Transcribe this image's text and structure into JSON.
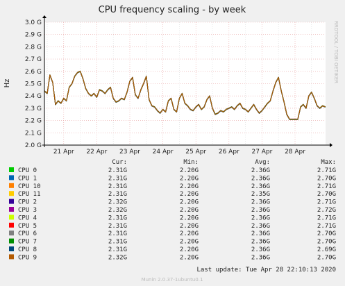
{
  "chart_data": {
    "type": "line",
    "title": "CPU frequency scaling - by week",
    "ylabel": "Hz",
    "side_label": "RRDTOOL / TOBI OETIKER",
    "ylim": [
      2000000000,
      3000000000
    ],
    "y_ticks": [
      {
        "value": 2000000000,
        "label": "2.0 G"
      },
      {
        "value": 2100000000,
        "label": "2.1 G"
      },
      {
        "value": 2200000000,
        "label": "2.2 G"
      },
      {
        "value": 2300000000,
        "label": "2.3 G"
      },
      {
        "value": 2400000000,
        "label": "2.4 G"
      },
      {
        "value": 2500000000,
        "label": "2.5 G"
      },
      {
        "value": 2600000000,
        "label": "2.6 G"
      },
      {
        "value": 2700000000,
        "label": "2.7 G"
      },
      {
        "value": 2800000000,
        "label": "2.8 G"
      },
      {
        "value": 2900000000,
        "label": "2.9 G"
      },
      {
        "value": 3000000000,
        "label": "3.0 G"
      }
    ],
    "x_range": [
      "2020-04-20 10:00",
      "2020-04-28 22:10"
    ],
    "x_ticks": [
      {
        "date": "2020-04-21",
        "label": "21 Apr"
      },
      {
        "date": "2020-04-22",
        "label": "22 Apr"
      },
      {
        "date": "2020-04-23",
        "label": "23 Apr"
      },
      {
        "date": "2020-04-24",
        "label": "24 Apr"
      },
      {
        "date": "2020-04-25",
        "label": "25 Apr"
      },
      {
        "date": "2020-04-26",
        "label": "26 Apr"
      },
      {
        "date": "2020-04-27",
        "label": "27 Apr"
      },
      {
        "date": "2020-04-28",
        "label": "28 Apr"
      }
    ],
    "grid": true,
    "x": [
      "2020-04-20 10:00",
      "2020-04-20 12:00",
      "2020-04-20 14:00",
      "2020-04-20 16:00",
      "2020-04-20 18:00",
      "2020-04-20 20:00",
      "2020-04-20 22:00",
      "2020-04-21 00:00",
      "2020-04-21 02:00",
      "2020-04-21 04:00",
      "2020-04-21 06:00",
      "2020-04-21 08:00",
      "2020-04-21 10:00",
      "2020-04-21 12:00",
      "2020-04-21 14:00",
      "2020-04-21 16:00",
      "2020-04-21 18:00",
      "2020-04-21 20:00",
      "2020-04-21 22:00",
      "2020-04-22 00:00",
      "2020-04-22 02:00",
      "2020-04-22 04:00",
      "2020-04-22 06:00",
      "2020-04-22 08:00",
      "2020-04-22 10:00",
      "2020-04-22 12:00",
      "2020-04-22 14:00",
      "2020-04-22 16:00",
      "2020-04-22 18:00",
      "2020-04-22 20:00",
      "2020-04-22 22:00",
      "2020-04-23 00:00",
      "2020-04-23 02:00",
      "2020-04-23 04:00",
      "2020-04-23 06:00",
      "2020-04-23 08:00",
      "2020-04-23 10:00",
      "2020-04-23 12:00",
      "2020-04-23 14:00",
      "2020-04-23 16:00",
      "2020-04-23 18:00",
      "2020-04-23 20:00",
      "2020-04-23 22:00",
      "2020-04-24 00:00",
      "2020-04-24 02:00",
      "2020-04-24 04:00",
      "2020-04-24 06:00",
      "2020-04-24 08:00",
      "2020-04-24 10:00",
      "2020-04-24 12:00",
      "2020-04-24 14:00",
      "2020-04-24 16:00",
      "2020-04-24 18:00",
      "2020-04-24 20:00",
      "2020-04-24 22:00",
      "2020-04-25 00:00",
      "2020-04-25 02:00",
      "2020-04-25 04:00",
      "2020-04-25 06:00",
      "2020-04-25 08:00",
      "2020-04-25 10:00",
      "2020-04-25 12:00",
      "2020-04-25 14:00",
      "2020-04-25 16:00",
      "2020-04-25 18:00",
      "2020-04-25 20:00",
      "2020-04-25 22:00",
      "2020-04-26 00:00",
      "2020-04-26 02:00",
      "2020-04-26 04:00",
      "2020-04-26 06:00",
      "2020-04-26 08:00",
      "2020-04-26 10:00",
      "2020-04-26 12:00",
      "2020-04-26 14:00",
      "2020-04-26 16:00",
      "2020-04-26 18:00",
      "2020-04-26 20:00",
      "2020-04-26 22:00",
      "2020-04-27 00:00",
      "2020-04-27 02:00",
      "2020-04-27 04:00",
      "2020-04-27 06:00",
      "2020-04-27 08:00",
      "2020-04-27 10:00",
      "2020-04-27 12:00",
      "2020-04-27 14:00",
      "2020-04-27 16:00",
      "2020-04-27 18:00",
      "2020-04-27 20:00",
      "2020-04-27 22:00",
      "2020-04-28 00:00",
      "2020-04-28 02:00",
      "2020-04-28 04:00",
      "2020-04-28 06:00",
      "2020-04-28 08:00",
      "2020-04-28 10:00",
      "2020-04-28 12:00",
      "2020-04-28 14:00",
      "2020-04-28 16:00",
      "2020-04-28 18:00",
      "2020-04-28 20:00",
      "2020-04-28 22:00"
    ],
    "values": [
      2440000000,
      2420000000,
      2570000000,
      2510000000,
      2330000000,
      2360000000,
      2340000000,
      2380000000,
      2360000000,
      2470000000,
      2500000000,
      2560000000,
      2590000000,
      2600000000,
      2540000000,
      2460000000,
      2420000000,
      2400000000,
      2420000000,
      2390000000,
      2450000000,
      2440000000,
      2420000000,
      2450000000,
      2470000000,
      2380000000,
      2350000000,
      2360000000,
      2380000000,
      2370000000,
      2430000000,
      2520000000,
      2550000000,
      2410000000,
      2380000000,
      2450000000,
      2500000000,
      2560000000,
      2370000000,
      2320000000,
      2310000000,
      2280000000,
      2260000000,
      2290000000,
      2270000000,
      2360000000,
      2380000000,
      2290000000,
      2270000000,
      2380000000,
      2420000000,
      2340000000,
      2320000000,
      2290000000,
      2280000000,
      2310000000,
      2330000000,
      2290000000,
      2310000000,
      2370000000,
      2400000000,
      2300000000,
      2250000000,
      2260000000,
      2280000000,
      2270000000,
      2290000000,
      2300000000,
      2310000000,
      2290000000,
      2320000000,
      2340000000,
      2300000000,
      2290000000,
      2270000000,
      2300000000,
      2330000000,
      2290000000,
      2260000000,
      2280000000,
      2310000000,
      2340000000,
      2360000000,
      2440000000,
      2510000000,
      2550000000,
      2440000000,
      2350000000,
      2250000000,
      2210000000,
      2210000000,
      2210000000,
      2210000000,
      2310000000,
      2330000000,
      2300000000,
      2400000000,
      2430000000,
      2380000000,
      2320000000,
      2300000000,
      2320000000,
      2310000000
    ],
    "legend": {
      "headers": [
        "Cur:",
        "Min:",
        "Avg:",
        "Max:"
      ],
      "rows": [
        {
          "name": "CPU 0",
          "color": "#00cc00",
          "cur": "2.31G",
          "min": "2.20G",
          "avg": "2.36G",
          "max": "2.71G"
        },
        {
          "name": "CPU 1",
          "color": "#0066b3",
          "cur": "2.31G",
          "min": "2.20G",
          "avg": "2.36G",
          "max": "2.70G"
        },
        {
          "name": "CPU 10",
          "color": "#ff8000",
          "cur": "2.31G",
          "min": "2.20G",
          "avg": "2.36G",
          "max": "2.71G"
        },
        {
          "name": "CPU 11",
          "color": "#ffcc00",
          "cur": "2.31G",
          "min": "2.20G",
          "avg": "2.35G",
          "max": "2.70G"
        },
        {
          "name": "CPU 2",
          "color": "#330099",
          "cur": "2.32G",
          "min": "2.20G",
          "avg": "2.36G",
          "max": "2.71G"
        },
        {
          "name": "CPU 3",
          "color": "#990099",
          "cur": "2.32G",
          "min": "2.20G",
          "avg": "2.36G",
          "max": "2.72G"
        },
        {
          "name": "CPU 4",
          "color": "#ccff00",
          "cur": "2.31G",
          "min": "2.20G",
          "avg": "2.36G",
          "max": "2.71G"
        },
        {
          "name": "CPU 5",
          "color": "#ff0000",
          "cur": "2.31G",
          "min": "2.20G",
          "avg": "2.36G",
          "max": "2.71G"
        },
        {
          "name": "CPU 6",
          "color": "#808080",
          "cur": "2.31G",
          "min": "2.20G",
          "avg": "2.36G",
          "max": "2.70G"
        },
        {
          "name": "CPU 7",
          "color": "#008f00",
          "cur": "2.31G",
          "min": "2.20G",
          "avg": "2.36G",
          "max": "2.70G"
        },
        {
          "name": "CPU 8",
          "color": "#00487d",
          "cur": "2.31G",
          "min": "2.20G",
          "avg": "2.36G",
          "max": "2.69G"
        },
        {
          "name": "CPU 9",
          "color": "#b35a00",
          "cur": "2.32G",
          "min": "2.20G",
          "avg": "2.36G",
          "max": "2.70G"
        }
      ]
    }
  },
  "footer": {
    "last_update": "Last update: Tue Apr 28 22:10:13 2020",
    "version": "Munin 2.0.37-1ubuntu0.1"
  },
  "colors": {
    "background": "#f0f0f0",
    "plot_background": "#ffffff",
    "grid_major": "#e8a0a0",
    "grid_minor": "#d8d8d8",
    "axis": "#000000",
    "text": "#222222",
    "watermark": "#bbbbbb"
  }
}
